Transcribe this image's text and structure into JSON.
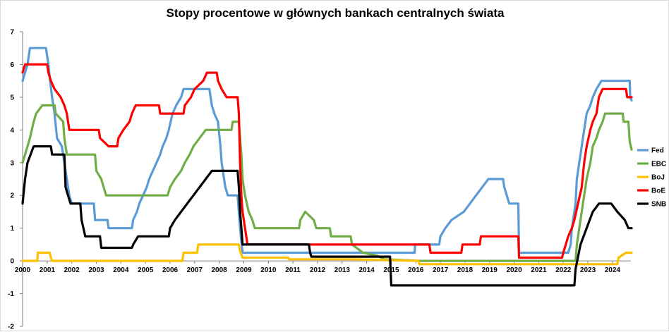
{
  "chart_data": {
    "type": "line",
    "title": "Stopy procentowe w głównych bankach centralnych świata",
    "xlabel": "",
    "ylabel": "",
    "xlim": [
      2000,
      2024.75
    ],
    "ylim": [
      -2,
      7
    ],
    "x_ticks": [
      "2000",
      "2001",
      "2002",
      "2003",
      "2004",
      "2005",
      "2006",
      "2007",
      "2008",
      "2009",
      "2010",
      "2011",
      "2012",
      "2013",
      "2014",
      "2015",
      "2016",
      "2017",
      "2018",
      "2019",
      "2020",
      "2021",
      "2022",
      "2023",
      "2024"
    ],
    "y_ticks": [
      "7",
      "6",
      "5",
      "4",
      "3",
      "2",
      "1",
      "0",
      "-1",
      "-2"
    ],
    "grid": false,
    "legend_position": "right",
    "series": [
      {
        "name": "Fed",
        "color": "#5b9bd5",
        "points": [
          [
            2000.0,
            5.5
          ],
          [
            2000.1,
            5.75
          ],
          [
            2000.2,
            6.0
          ],
          [
            2000.3,
            6.5
          ],
          [
            2000.95,
            6.5
          ],
          [
            2001.05,
            6.0
          ],
          [
            2001.12,
            5.5
          ],
          [
            2001.2,
            5.0
          ],
          [
            2001.3,
            4.5
          ],
          [
            2001.4,
            3.75
          ],
          [
            2001.6,
            3.5
          ],
          [
            2001.7,
            3.0
          ],
          [
            2001.8,
            2.5
          ],
          [
            2001.9,
            2.0
          ],
          [
            2002.0,
            1.75
          ],
          [
            2002.9,
            1.75
          ],
          [
            2002.95,
            1.25
          ],
          [
            2003.45,
            1.25
          ],
          [
            2003.5,
            1.0
          ],
          [
            2004.45,
            1.0
          ],
          [
            2004.5,
            1.25
          ],
          [
            2004.65,
            1.5
          ],
          [
            2004.75,
            1.75
          ],
          [
            2004.9,
            2.0
          ],
          [
            2005.05,
            2.25
          ],
          [
            2005.15,
            2.5
          ],
          [
            2005.3,
            2.75
          ],
          [
            2005.45,
            3.0
          ],
          [
            2005.6,
            3.25
          ],
          [
            2005.7,
            3.5
          ],
          [
            2005.85,
            3.75
          ],
          [
            2005.95,
            4.0
          ],
          [
            2006.1,
            4.5
          ],
          [
            2006.25,
            4.75
          ],
          [
            2006.45,
            5.0
          ],
          [
            2006.55,
            5.25
          ],
          [
            2007.6,
            5.25
          ],
          [
            2007.7,
            4.75
          ],
          [
            2007.8,
            4.5
          ],
          [
            2007.95,
            4.25
          ],
          [
            2008.05,
            3.5
          ],
          [
            2008.1,
            3.0
          ],
          [
            2008.25,
            2.25
          ],
          [
            2008.35,
            2.0
          ],
          [
            2008.75,
            2.0
          ],
          [
            2008.8,
            1.5
          ],
          [
            2008.85,
            1.0
          ],
          [
            2008.95,
            0.25
          ],
          [
            2015.95,
            0.25
          ],
          [
            2015.97,
            0.5
          ],
          [
            2016.95,
            0.5
          ],
          [
            2017.0,
            0.75
          ],
          [
            2017.2,
            1.0
          ],
          [
            2017.45,
            1.25
          ],
          [
            2017.95,
            1.5
          ],
          [
            2018.2,
            1.75
          ],
          [
            2018.45,
            2.0
          ],
          [
            2018.7,
            2.25
          ],
          [
            2018.95,
            2.5
          ],
          [
            2019.55,
            2.5
          ],
          [
            2019.6,
            2.25
          ],
          [
            2019.7,
            2.0
          ],
          [
            2019.8,
            1.75
          ],
          [
            2020.17,
            1.75
          ],
          [
            2020.2,
            0.25
          ],
          [
            2022.2,
            0.25
          ],
          [
            2022.3,
            0.5
          ],
          [
            2022.35,
            1.0
          ],
          [
            2022.5,
            1.75
          ],
          [
            2022.55,
            2.5
          ],
          [
            2022.7,
            3.25
          ],
          [
            2022.85,
            4.0
          ],
          [
            2022.95,
            4.5
          ],
          [
            2023.1,
            4.75
          ],
          [
            2023.2,
            5.0
          ],
          [
            2023.35,
            5.25
          ],
          [
            2023.55,
            5.5
          ],
          [
            2024.7,
            5.5
          ],
          [
            2024.72,
            5.0
          ],
          [
            2024.78,
            4.9
          ]
        ]
      },
      {
        "name": "EBC",
        "color": "#70ad47",
        "points": [
          [
            2000.0,
            3.0
          ],
          [
            2000.1,
            3.25
          ],
          [
            2000.2,
            3.5
          ],
          [
            2000.3,
            3.75
          ],
          [
            2000.45,
            4.25
          ],
          [
            2000.55,
            4.5
          ],
          [
            2000.8,
            4.75
          ],
          [
            2001.3,
            4.75
          ],
          [
            2001.35,
            4.5
          ],
          [
            2001.65,
            4.25
          ],
          [
            2001.7,
            3.75
          ],
          [
            2001.8,
            3.25
          ],
          [
            2002.95,
            3.25
          ],
          [
            2003.0,
            2.75
          ],
          [
            2003.2,
            2.5
          ],
          [
            2003.4,
            2.0
          ],
          [
            2005.9,
            2.0
          ],
          [
            2006.0,
            2.25
          ],
          [
            2006.2,
            2.5
          ],
          [
            2006.45,
            2.75
          ],
          [
            2006.6,
            3.0
          ],
          [
            2006.8,
            3.25
          ],
          [
            2006.95,
            3.5
          ],
          [
            2007.2,
            3.75
          ],
          [
            2007.45,
            4.0
          ],
          [
            2008.5,
            4.0
          ],
          [
            2008.55,
            4.25
          ],
          [
            2008.8,
            4.25
          ],
          [
            2008.85,
            3.75
          ],
          [
            2008.9,
            3.25
          ],
          [
            2008.95,
            2.5
          ],
          [
            2009.05,
            2.0
          ],
          [
            2009.2,
            1.5
          ],
          [
            2009.35,
            1.25
          ],
          [
            2009.45,
            1.0
          ],
          [
            2011.25,
            1.0
          ],
          [
            2011.3,
            1.25
          ],
          [
            2011.5,
            1.5
          ],
          [
            2011.85,
            1.25
          ],
          [
            2011.95,
            1.0
          ],
          [
            2012.5,
            1.0
          ],
          [
            2012.55,
            0.75
          ],
          [
            2013.35,
            0.75
          ],
          [
            2013.4,
            0.5
          ],
          [
            2013.85,
            0.25
          ],
          [
            2014.45,
            0.15
          ],
          [
            2014.7,
            0.05
          ],
          [
            2016.2,
            0.0
          ],
          [
            2022.5,
            0.0
          ],
          [
            2022.55,
            0.5
          ],
          [
            2022.7,
            1.25
          ],
          [
            2022.85,
            2.0
          ],
          [
            2022.95,
            2.5
          ],
          [
            2023.1,
            3.0
          ],
          [
            2023.2,
            3.5
          ],
          [
            2023.35,
            3.75
          ],
          [
            2023.45,
            4.0
          ],
          [
            2023.6,
            4.25
          ],
          [
            2023.7,
            4.5
          ],
          [
            2024.42,
            4.5
          ],
          [
            2024.45,
            4.25
          ],
          [
            2024.65,
            4.25
          ],
          [
            2024.7,
            3.65
          ],
          [
            2024.78,
            3.4
          ]
        ]
      },
      {
        "name": "BoJ",
        "color": "#ffc000",
        "points": [
          [
            2000.0,
            0.0
          ],
          [
            2000.6,
            0.0
          ],
          [
            2000.62,
            0.25
          ],
          [
            2001.1,
            0.25
          ],
          [
            2001.15,
            0.1
          ],
          [
            2001.2,
            0.0
          ],
          [
            2006.5,
            0.0
          ],
          [
            2006.55,
            0.25
          ],
          [
            2007.1,
            0.25
          ],
          [
            2007.15,
            0.5
          ],
          [
            2008.8,
            0.5
          ],
          [
            2008.85,
            0.3
          ],
          [
            2008.95,
            0.1
          ],
          [
            2010.8,
            0.1
          ],
          [
            2010.85,
            0.05
          ],
          [
            2013.3,
            0.05
          ],
          [
            2016.1,
            0.0
          ],
          [
            2016.15,
            -0.1
          ],
          [
            2024.2,
            -0.1
          ],
          [
            2024.25,
            0.1
          ],
          [
            2024.55,
            0.25
          ],
          [
            2024.78,
            0.25
          ]
        ]
      },
      {
        "name": "BoE",
        "color": "#ff0000",
        "points": [
          [
            2000.0,
            5.75
          ],
          [
            2000.1,
            6.0
          ],
          [
            2001.0,
            6.0
          ],
          [
            2001.05,
            5.75
          ],
          [
            2001.15,
            5.5
          ],
          [
            2001.3,
            5.25
          ],
          [
            2001.55,
            5.0
          ],
          [
            2001.7,
            4.75
          ],
          [
            2001.8,
            4.5
          ],
          [
            2001.9,
            4.0
          ],
          [
            2003.1,
            4.0
          ],
          [
            2003.15,
            3.75
          ],
          [
            2003.5,
            3.5
          ],
          [
            2003.85,
            3.5
          ],
          [
            2003.9,
            3.75
          ],
          [
            2004.1,
            4.0
          ],
          [
            2004.35,
            4.25
          ],
          [
            2004.45,
            4.5
          ],
          [
            2004.6,
            4.75
          ],
          [
            2005.55,
            4.75
          ],
          [
            2005.6,
            4.5
          ],
          [
            2006.55,
            4.5
          ],
          [
            2006.6,
            4.75
          ],
          [
            2006.85,
            5.0
          ],
          [
            2007.0,
            5.25
          ],
          [
            2007.35,
            5.5
          ],
          [
            2007.5,
            5.75
          ],
          [
            2007.9,
            5.75
          ],
          [
            2007.95,
            5.5
          ],
          [
            2008.1,
            5.25
          ],
          [
            2008.3,
            5.0
          ],
          [
            2008.75,
            5.0
          ],
          [
            2008.8,
            4.5
          ],
          [
            2008.85,
            3.0
          ],
          [
            2008.9,
            2.0
          ],
          [
            2008.95,
            1.5
          ],
          [
            2009.05,
            1.0
          ],
          [
            2009.15,
            0.5
          ],
          [
            2016.55,
            0.5
          ],
          [
            2016.6,
            0.25
          ],
          [
            2017.85,
            0.25
          ],
          [
            2017.9,
            0.5
          ],
          [
            2018.6,
            0.5
          ],
          [
            2018.65,
            0.75
          ],
          [
            2020.17,
            0.75
          ],
          [
            2020.2,
            0.1
          ],
          [
            2021.95,
            0.1
          ],
          [
            2022.0,
            0.25
          ],
          [
            2022.1,
            0.5
          ],
          [
            2022.2,
            0.75
          ],
          [
            2022.35,
            1.0
          ],
          [
            2022.45,
            1.25
          ],
          [
            2022.6,
            1.75
          ],
          [
            2022.75,
            2.25
          ],
          [
            2022.85,
            3.0
          ],
          [
            2022.95,
            3.5
          ],
          [
            2023.1,
            4.0
          ],
          [
            2023.2,
            4.25
          ],
          [
            2023.35,
            4.5
          ],
          [
            2023.45,
            5.0
          ],
          [
            2023.6,
            5.25
          ],
          [
            2024.55,
            5.25
          ],
          [
            2024.6,
            5.0
          ],
          [
            2024.78,
            5.0
          ]
        ]
      },
      {
        "name": "SNB",
        "color": "#000000",
        "points": [
          [
            2000.0,
            1.75
          ],
          [
            2000.1,
            2.5
          ],
          [
            2000.2,
            3.0
          ],
          [
            2000.45,
            3.5
          ],
          [
            2001.15,
            3.5
          ],
          [
            2001.2,
            3.25
          ],
          [
            2001.7,
            3.25
          ],
          [
            2001.75,
            2.25
          ],
          [
            2001.95,
            1.75
          ],
          [
            2002.35,
            1.75
          ],
          [
            2002.4,
            1.25
          ],
          [
            2002.55,
            0.75
          ],
          [
            2003.15,
            0.75
          ],
          [
            2003.2,
            0.4
          ],
          [
            2004.45,
            0.4
          ],
          [
            2004.5,
            0.5
          ],
          [
            2004.7,
            0.75
          ],
          [
            2005.95,
            0.75
          ],
          [
            2006.0,
            1.0
          ],
          [
            2006.2,
            1.25
          ],
          [
            2006.45,
            1.5
          ],
          [
            2006.7,
            1.75
          ],
          [
            2006.95,
            2.0
          ],
          [
            2007.2,
            2.25
          ],
          [
            2007.45,
            2.5
          ],
          [
            2007.7,
            2.75
          ],
          [
            2008.75,
            2.75
          ],
          [
            2008.8,
            2.25
          ],
          [
            2008.85,
            1.5
          ],
          [
            2008.9,
            1.0
          ],
          [
            2008.95,
            0.5
          ],
          [
            2011.65,
            0.5
          ],
          [
            2011.7,
            0.25
          ],
          [
            2011.75,
            0.13
          ],
          [
            2014.95,
            0.13
          ],
          [
            2015.0,
            -0.75
          ],
          [
            2022.45,
            -0.75
          ],
          [
            2022.5,
            -0.25
          ],
          [
            2022.7,
            0.5
          ],
          [
            2022.95,
            1.0
          ],
          [
            2023.2,
            1.5
          ],
          [
            2023.45,
            1.75
          ],
          [
            2023.95,
            1.75
          ],
          [
            2024.2,
            1.5
          ],
          [
            2024.5,
            1.25
          ],
          [
            2024.65,
            1.0
          ],
          [
            2024.78,
            1.0
          ]
        ]
      }
    ]
  }
}
